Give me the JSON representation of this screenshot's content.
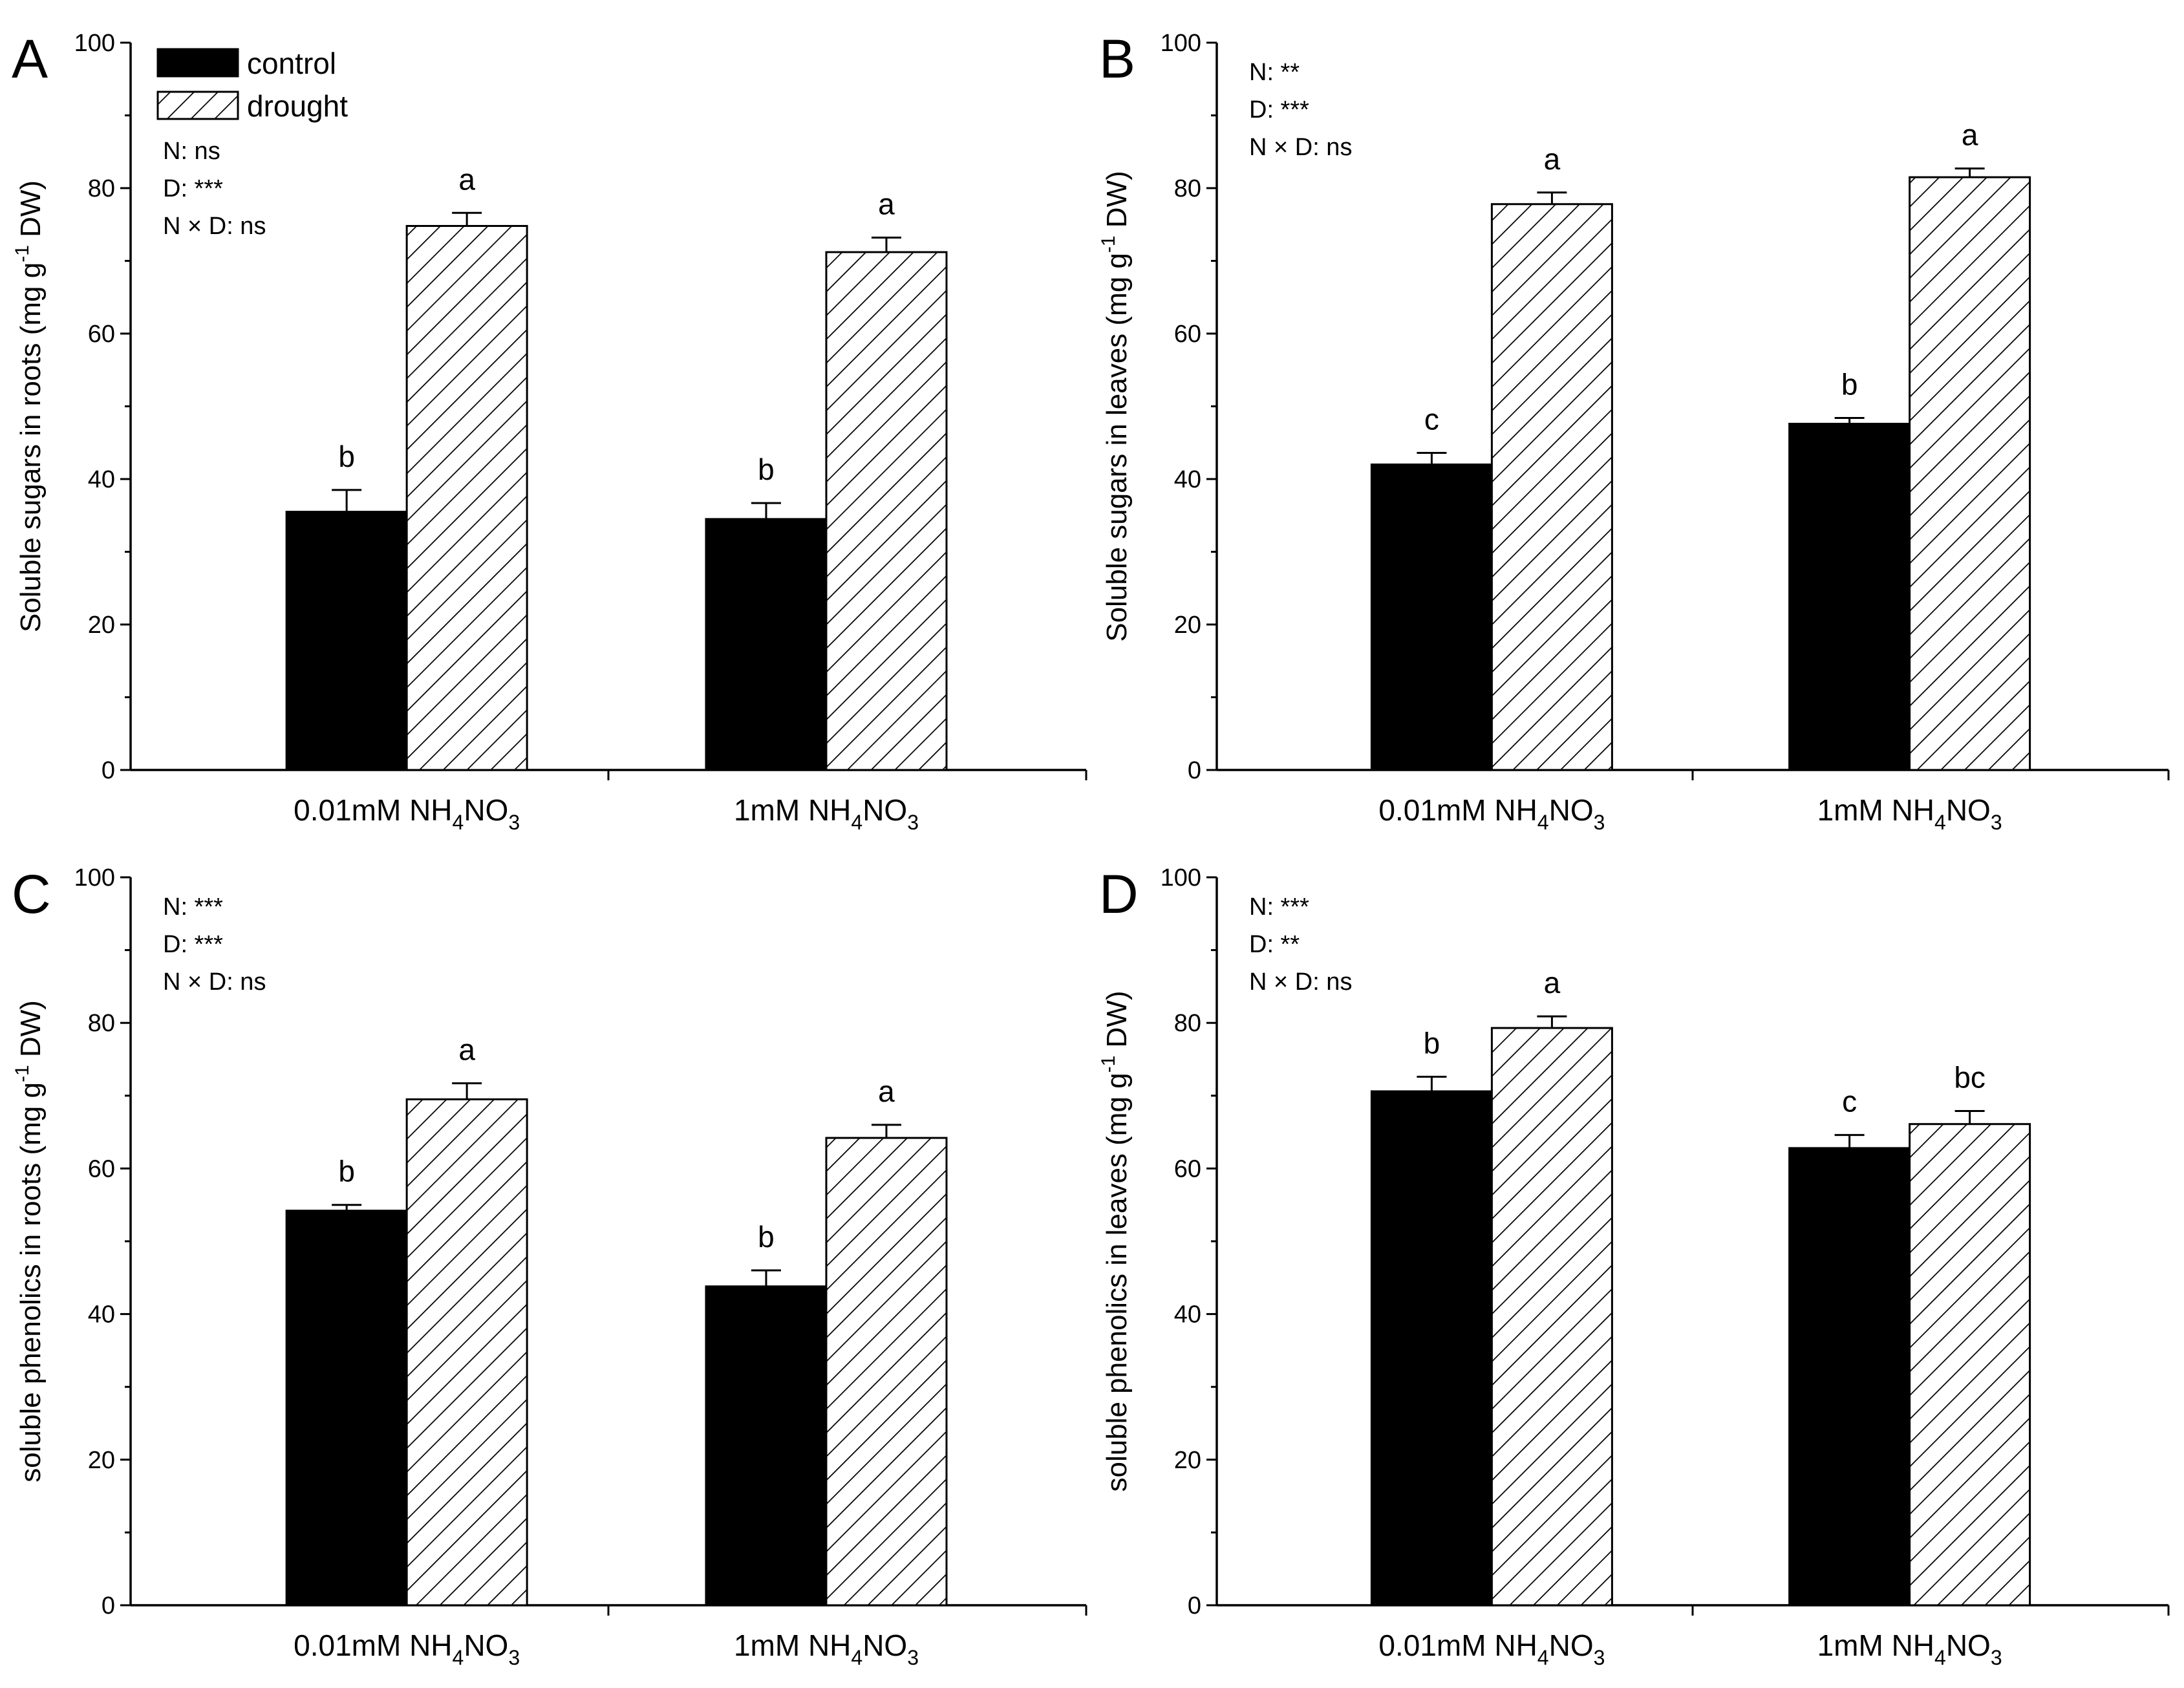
{
  "chart_data": [
    {
      "panel": "A",
      "type": "bar",
      "ylabel": "Soluble sugars in roots (mg g-1 DW)",
      "ylabel_parts": [
        "Soluble sugars in roots (mg g",
        "-1",
        " DW)"
      ],
      "ylim": [
        0,
        100
      ],
      "yticks": [
        0,
        20,
        40,
        60,
        80,
        100
      ],
      "categories": [
        [
          "0.01mM NH",
          "4",
          "NO",
          "3"
        ],
        [
          "1mM NH",
          "4",
          "NO",
          "3"
        ]
      ],
      "series": [
        {
          "name": "control",
          "fill": "solid",
          "values": [
            35.5,
            34.5
          ],
          "errors": [
            3.0,
            2.2
          ],
          "labels": [
            "b",
            "b"
          ]
        },
        {
          "name": "drought",
          "fill": "hatched",
          "values": [
            74.8,
            71.2
          ],
          "errors": [
            1.8,
            2.0
          ],
          "labels": [
            "a",
            "a"
          ]
        }
      ],
      "stats": [
        "N:  ns",
        "D: ***",
        "N × D: ns"
      ],
      "legend": true
    },
    {
      "panel": "B",
      "type": "bar",
      "ylabel": "Soluble sugars in leaves (mg g-1 DW)",
      "ylabel_parts": [
        "Soluble sugars in leaves (mg g",
        "-1",
        " DW)"
      ],
      "ylim": [
        0,
        100
      ],
      "yticks": [
        0,
        20,
        40,
        60,
        80,
        100
      ],
      "categories": [
        [
          "0.01mM NH",
          "4",
          "NO",
          "3"
        ],
        [
          "1mM NH",
          "4",
          "NO",
          "3"
        ]
      ],
      "series": [
        {
          "name": "control",
          "fill": "solid",
          "values": [
            42.0,
            47.6
          ],
          "errors": [
            1.6,
            0.8
          ],
          "labels": [
            "c",
            "b"
          ]
        },
        {
          "name": "drought",
          "fill": "hatched",
          "values": [
            77.8,
            81.5
          ],
          "errors": [
            1.6,
            1.2
          ],
          "labels": [
            "a",
            "a"
          ]
        }
      ],
      "stats": [
        "N:  **",
        "D: ***",
        "N × D: ns"
      ],
      "legend": false
    },
    {
      "panel": "C",
      "type": "bar",
      "ylabel": "soluble phenolics in roots (mg g-1 DW)",
      "ylabel_parts": [
        "soluble phenolics in roots (mg g",
        "-1",
        " DW)"
      ],
      "ylim": [
        0,
        100
      ],
      "yticks": [
        0,
        20,
        40,
        60,
        80,
        100
      ],
      "categories": [
        [
          "0.01mM NH",
          "4",
          "NO",
          "3"
        ],
        [
          "1mM NH",
          "4",
          "NO",
          "3"
        ]
      ],
      "series": [
        {
          "name": "control",
          "fill": "solid",
          "values": [
            54.2,
            43.8
          ],
          "errors": [
            0.8,
            2.2
          ],
          "labels": [
            "b",
            "b"
          ]
        },
        {
          "name": "drought",
          "fill": "hatched",
          "values": [
            69.5,
            64.2
          ],
          "errors": [
            2.2,
            1.8
          ],
          "labels": [
            "a",
            "a"
          ]
        }
      ],
      "stats": [
        "N: ***",
        "D: ***",
        "N × D: ns"
      ],
      "legend": false
    },
    {
      "panel": "D",
      "type": "bar",
      "ylabel": "soluble phenolics in leaves  (mg g-1 DW)",
      "ylabel_parts": [
        "soluble phenolics in leaves  (mg g",
        "-1",
        " DW)"
      ],
      "ylim": [
        0,
        100
      ],
      "yticks": [
        0,
        20,
        40,
        60,
        80,
        100
      ],
      "categories": [
        [
          "0.01mM NH",
          "4",
          "NO",
          "3"
        ],
        [
          "1mM NH",
          "4",
          "NO",
          "3"
        ]
      ],
      "series": [
        {
          "name": "control",
          "fill": "solid",
          "values": [
            70.6,
            62.8
          ],
          "errors": [
            2.0,
            1.8
          ],
          "labels": [
            "b",
            "c"
          ]
        },
        {
          "name": "drought",
          "fill": "hatched",
          "values": [
            79.3,
            66.1
          ],
          "errors": [
            1.6,
            1.8
          ],
          "labels": [
            "a",
            "bc"
          ]
        }
      ],
      "stats": [
        "N: ***",
        "D: **",
        "N × D: ns"
      ],
      "legend": false
    }
  ],
  "colors": {
    "axis": "#000000",
    "control_fill": "#000000",
    "drought_fill": "#ffffff",
    "hatch": "#000000",
    "background": "#ffffff"
  }
}
